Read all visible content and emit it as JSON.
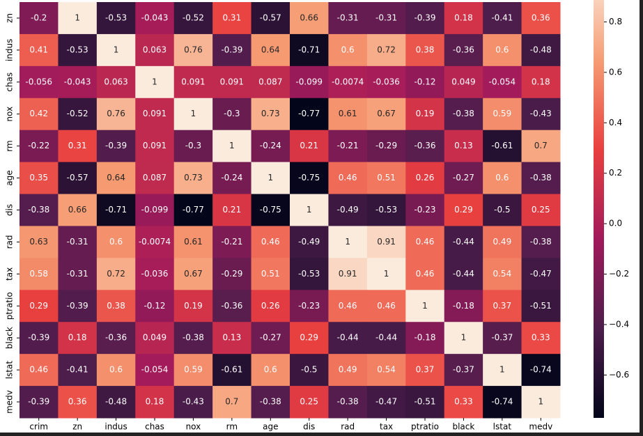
{
  "chart_data": {
    "type": "heatmap",
    "categories": [
      "crim",
      "zn",
      "indus",
      "chas",
      "nox",
      "rm",
      "age",
      "dis",
      "rad",
      "tax",
      "ptratio",
      "black",
      "lstat",
      "medv"
    ],
    "y_categories": [
      "zn",
      "indus",
      "chas",
      "nox",
      "rm",
      "age",
      "dis",
      "rad",
      "tax",
      "ptratio",
      "black",
      "lstat",
      "medv"
    ],
    "values": [
      [
        -0.2,
        1,
        -0.53,
        -0.043,
        -0.52,
        0.31,
        -0.57,
        0.66,
        -0.31,
        -0.31,
        -0.39,
        0.18,
        -0.41,
        0.36
      ],
      [
        0.41,
        -0.53,
        1,
        0.063,
        0.76,
        -0.39,
        0.64,
        -0.71,
        0.6,
        0.72,
        0.38,
        -0.36,
        0.6,
        -0.48
      ],
      [
        -0.056,
        -0.043,
        0.063,
        1,
        0.091,
        0.091,
        0.087,
        -0.099,
        -0.0074,
        -0.036,
        -0.12,
        0.049,
        -0.054,
        0.18
      ],
      [
        0.42,
        -0.52,
        0.76,
        0.091,
        1,
        -0.3,
        0.73,
        -0.77,
        0.61,
        0.67,
        0.19,
        -0.38,
        0.59,
        -0.43
      ],
      [
        -0.22,
        0.31,
        -0.39,
        0.091,
        -0.3,
        1,
        -0.24,
        0.21,
        -0.21,
        -0.29,
        -0.36,
        0.13,
        -0.61,
        0.7
      ],
      [
        0.35,
        -0.57,
        0.64,
        0.087,
        0.73,
        -0.24,
        1,
        -0.75,
        0.46,
        0.51,
        0.26,
        -0.27,
        0.6,
        -0.38
      ],
      [
        -0.38,
        0.66,
        -0.71,
        -0.099,
        -0.77,
        0.21,
        -0.75,
        1,
        -0.49,
        -0.53,
        -0.23,
        0.29,
        -0.5,
        0.25
      ],
      [
        0.63,
        -0.31,
        0.6,
        -0.0074,
        0.61,
        -0.21,
        0.46,
        -0.49,
        1,
        0.91,
        0.46,
        -0.44,
        0.49,
        -0.38
      ],
      [
        0.58,
        -0.31,
        0.72,
        -0.036,
        0.67,
        -0.29,
        0.51,
        -0.53,
        0.91,
        1,
        0.46,
        -0.44,
        0.54,
        -0.47
      ],
      [
        0.29,
        -0.39,
        0.38,
        -0.12,
        0.19,
        -0.36,
        0.26,
        -0.23,
        0.46,
        0.46,
        1,
        -0.18,
        0.37,
        -0.51
      ],
      [
        -0.39,
        0.18,
        -0.36,
        0.049,
        -0.38,
        0.13,
        -0.27,
        0.29,
        -0.44,
        -0.44,
        -0.18,
        1,
        -0.37,
        0.33
      ],
      [
        0.46,
        -0.41,
        0.6,
        -0.054,
        0.59,
        -0.61,
        0.6,
        -0.5,
        0.49,
        0.54,
        0.37,
        -0.37,
        1,
        -0.74
      ],
      [
        -0.39,
        0.36,
        -0.48,
        0.18,
        -0.43,
        0.7,
        -0.38,
        0.25,
        -0.38,
        -0.47,
        -0.51,
        0.33,
        -0.74,
        1
      ]
    ],
    "colormap": [
      "#03051a",
      "#4c1d4b",
      "#a11a5b",
      "#e83f3f",
      "#f69c73",
      "#faebdd"
    ],
    "clim": [
      -0.77,
      1
    ],
    "cticks": [
      0.8,
      0.6,
      0.4,
      0.2,
      {
        "value": 0,
        "label": "0.0"
      },
      {
        "value": -0.2,
        "label": "−0.2"
      },
      {
        "value": -0.4,
        "label": "−0.4"
      },
      {
        "value": -0.6,
        "label": "−0.6"
      }
    ]
  }
}
